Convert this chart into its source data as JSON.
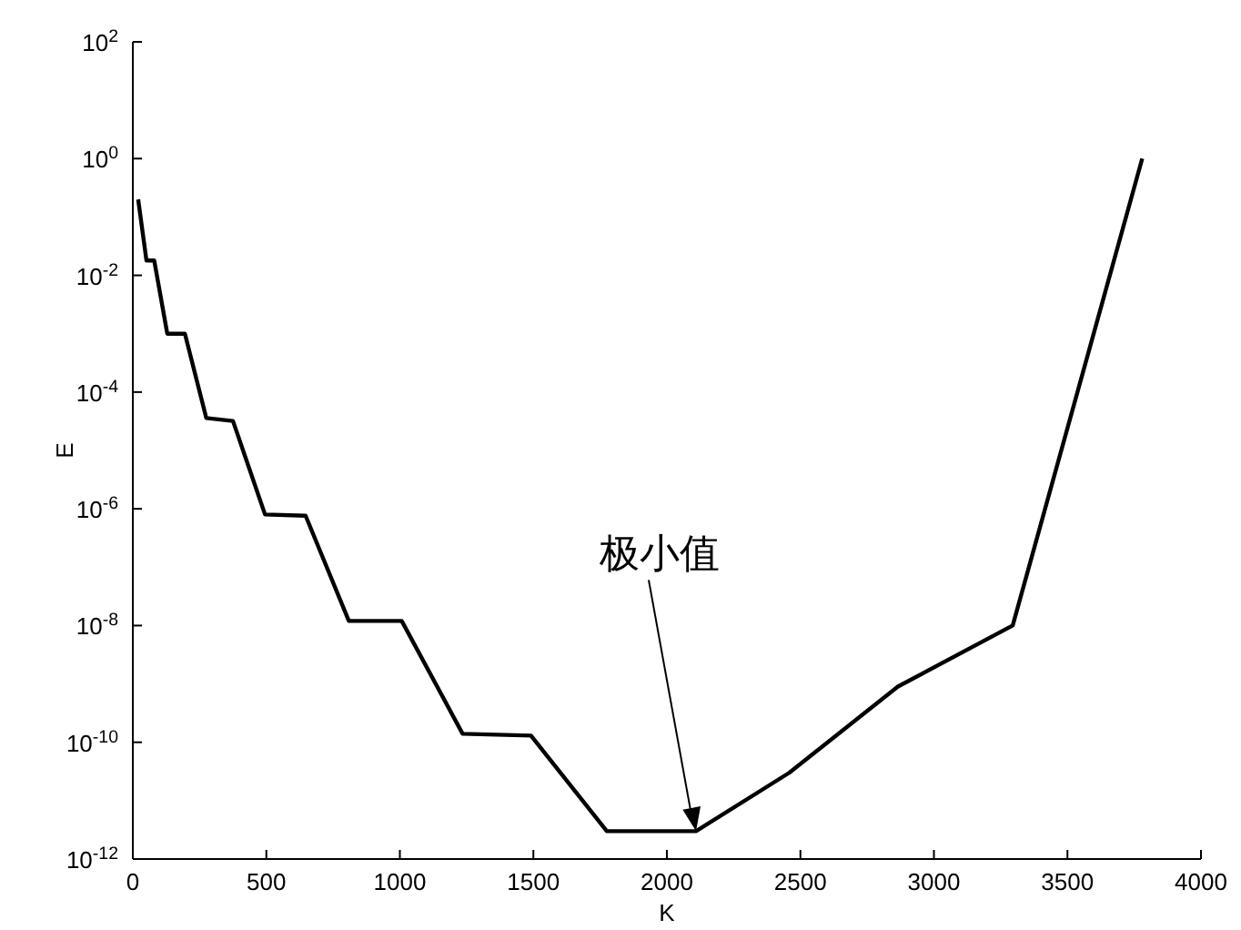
{
  "chart_data": {
    "type": "line",
    "xlabel": "K",
    "ylabel": "E",
    "log": "y",
    "xlim": [
      0,
      4000
    ],
    "xticks": [
      0,
      500,
      1000,
      1500,
      2000,
      2500,
      3000,
      3500,
      4000
    ],
    "ylim": [
      1e-12,
      100
    ],
    "yticks": [
      {
        "value": 100,
        "label": "10$^{2}$"
      },
      {
        "value": 1,
        "label": "10$^{0}$"
      },
      {
        "value": 0.01,
        "label": "10$^{-2}$"
      },
      {
        "value": 0.0001,
        "label": "10$^{-4}$"
      },
      {
        "value": 1e-06,
        "label": "10$^{-6}$"
      },
      {
        "value": 1e-08,
        "label": "10$^{-8}$"
      },
      {
        "value": 1e-10,
        "label": "10$^{-10}$"
      },
      {
        "value": 1e-12,
        "label": "10$^{-12}$"
      }
    ],
    "grid": false,
    "marker": "none",
    "line_style": "solid",
    "series": [
      {
        "color": "#000000",
        "x": [
          20,
          51,
          80,
          129,
          195,
          275,
          375,
          495,
          647,
          809,
          1007,
          1235,
          1491,
          1775,
          2109,
          2458,
          2865,
          3295,
          3780
        ],
        "values": [
          0.2,
          0.018,
          0.018,
          0.001,
          0.001,
          3.6e-05,
          3.2e-05,
          8e-07,
          7.6e-07,
          1.2e-08,
          1.2e-08,
          1.4e-10,
          1.3e-10,
          3e-12,
          3e-12,
          3e-11,
          9e-10,
          1e-08,
          1
        ]
      }
    ],
    "annotations": [
      {
        "text": "极小值",
        "x": 2109,
        "y": 3e-12
      }
    ]
  }
}
